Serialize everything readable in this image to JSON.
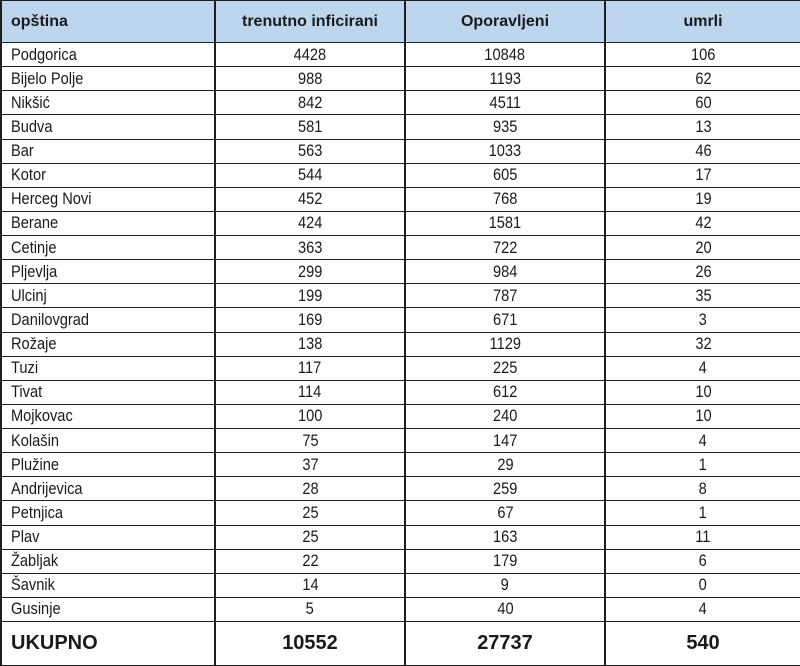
{
  "colors": {
    "header_bg": "#bdd6ee",
    "border": "#1e1e1e",
    "text": "#1a1a1a",
    "row_bg": "#ffffff"
  },
  "chart_data": {
    "type": "table",
    "columns": [
      "opština",
      "trenutno inficirani",
      "Oporavljeni",
      "umrli"
    ],
    "rows": [
      [
        "Podgorica",
        4428,
        10848,
        106
      ],
      [
        "Bijelo Polje",
        988,
        1193,
        62
      ],
      [
        "Nikšić",
        842,
        4511,
        60
      ],
      [
        "Budva",
        581,
        935,
        13
      ],
      [
        "Bar",
        563,
        1033,
        46
      ],
      [
        "Kotor",
        544,
        605,
        17
      ],
      [
        "Herceg Novi",
        452,
        768,
        19
      ],
      [
        "Berane",
        424,
        1581,
        42
      ],
      [
        "Cetinje",
        363,
        722,
        20
      ],
      [
        "Pljevlja",
        299,
        984,
        26
      ],
      [
        "Ulcinj",
        199,
        787,
        35
      ],
      [
        "Danilovgrad",
        169,
        671,
        3
      ],
      [
        "Rožaje",
        138,
        1129,
        32
      ],
      [
        "Tuzi",
        117,
        225,
        4
      ],
      [
        "Tivat",
        114,
        612,
        10
      ],
      [
        "Mojkovac",
        100,
        240,
        10
      ],
      [
        "Kolašin",
        75,
        147,
        4
      ],
      [
        "Plužine",
        37,
        29,
        1
      ],
      [
        "Andrijevica",
        28,
        259,
        8
      ],
      [
        "Petnjica",
        25,
        67,
        1
      ],
      [
        "Plav",
        25,
        163,
        11
      ],
      [
        "Žabljak",
        22,
        179,
        6
      ],
      [
        "Šavnik",
        14,
        9,
        0
      ],
      [
        "Gusinje",
        5,
        40,
        4
      ]
    ],
    "total_row": [
      "UKUPNO",
      10552,
      27737,
      540
    ]
  }
}
